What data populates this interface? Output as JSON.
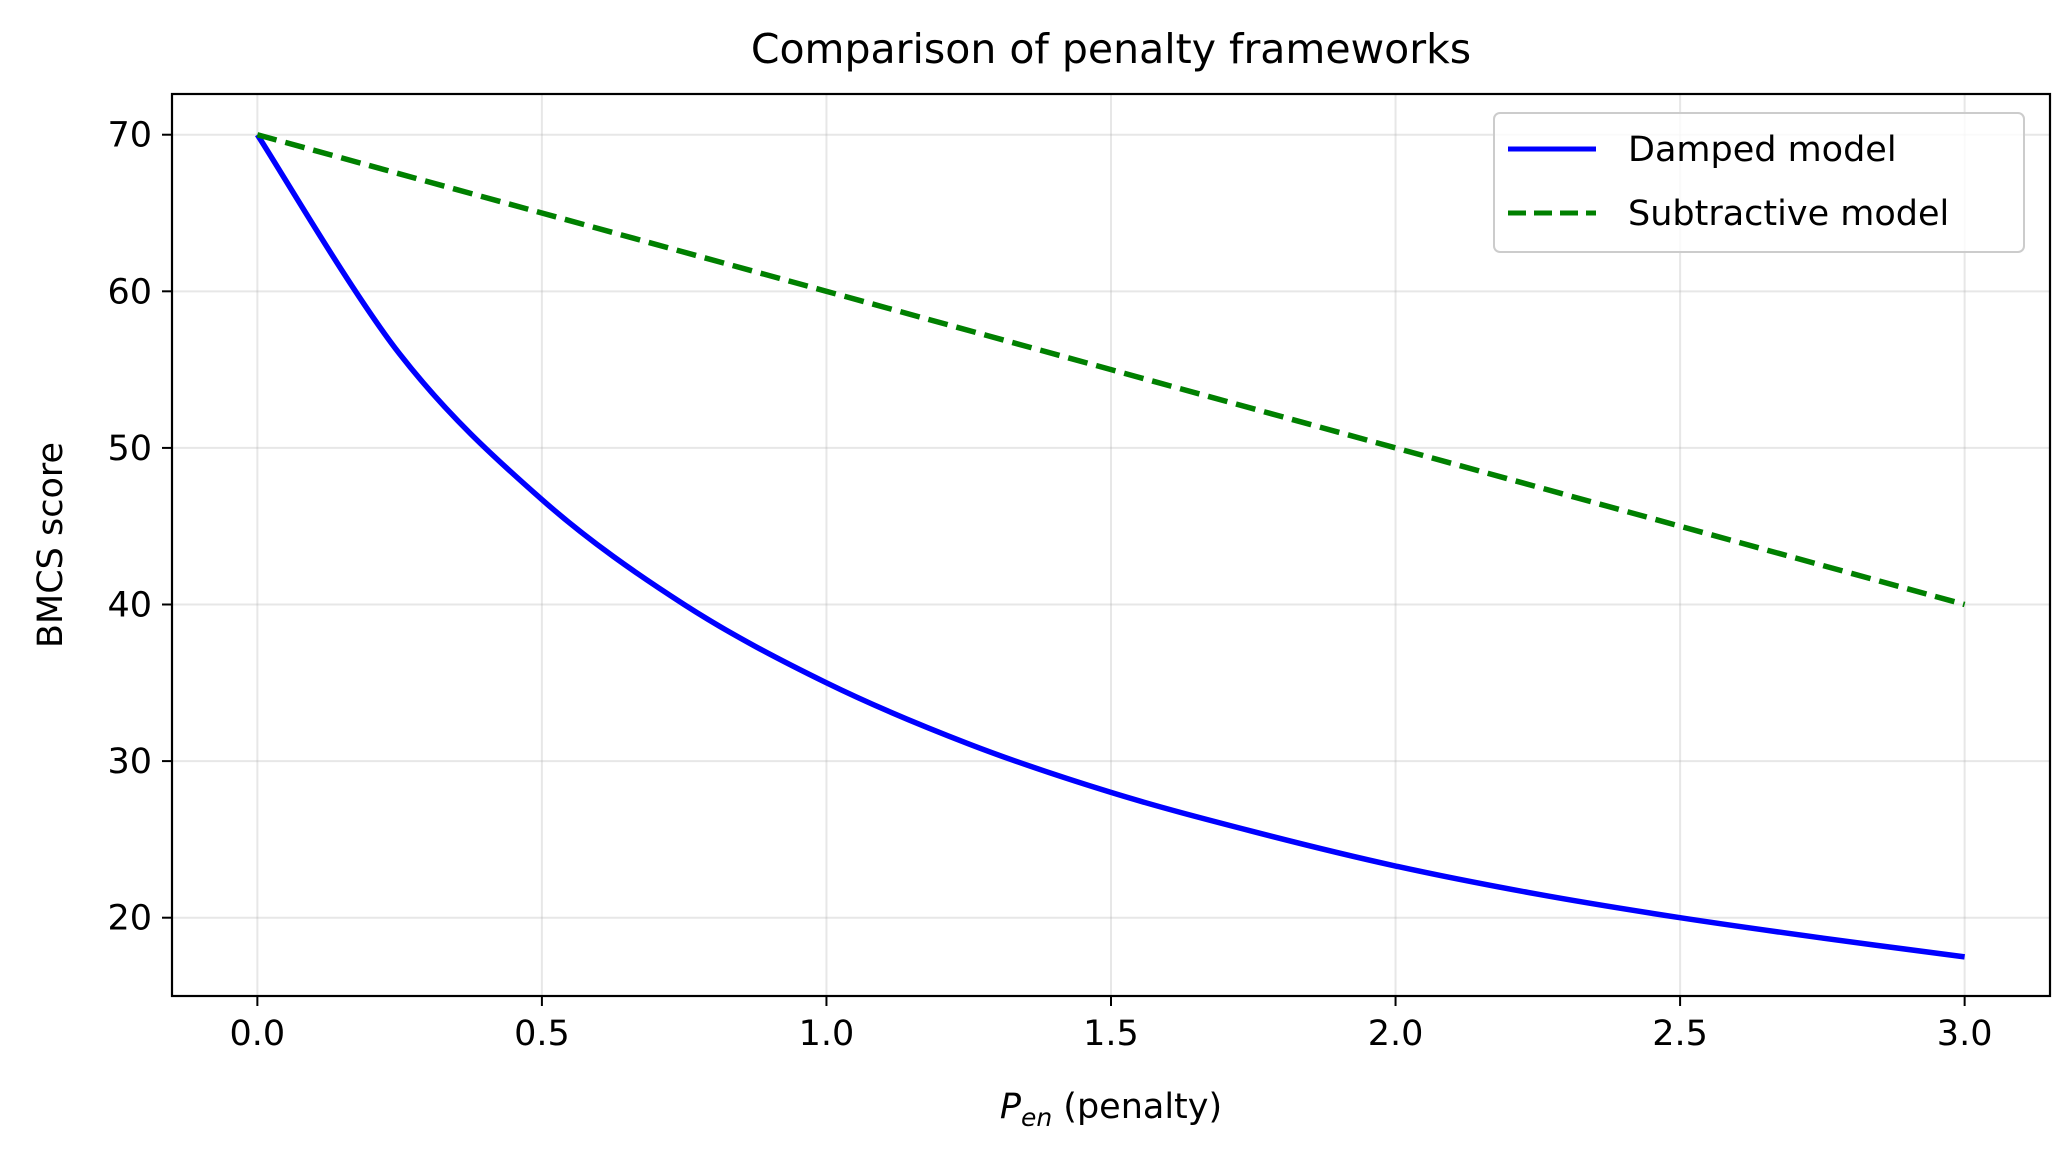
{
  "chart_data": {
    "type": "line",
    "title": "Comparison of penalty frameworks",
    "xlabel_symbol": "P",
    "xlabel_subscript": "en",
    "xlabel_rest": " (penalty)",
    "ylabel": "BMCS score",
    "xlim": [
      -0.15,
      3.15
    ],
    "ylim": [
      15.0,
      72.6
    ],
    "x_ticks": [
      0.0,
      0.5,
      1.0,
      1.5,
      2.0,
      2.5,
      3.0
    ],
    "x_tick_labels": [
      "0.0",
      "0.5",
      "1.0",
      "1.5",
      "2.0",
      "2.5",
      "3.0"
    ],
    "y_ticks": [
      20,
      30,
      40,
      50,
      60,
      70
    ],
    "y_tick_labels": [
      "20",
      "30",
      "40",
      "50",
      "60",
      "70"
    ],
    "grid": true,
    "legend_position": "top-right",
    "series": [
      {
        "name": "Damped model",
        "color": "#0000ff",
        "style": "solid",
        "x": [
          0.0,
          0.25,
          0.5,
          0.75,
          1.0,
          1.25,
          1.5,
          1.75,
          2.0,
          2.25,
          2.5,
          2.75,
          3.0
        ],
        "y": [
          70.0,
          56.0,
          46.7,
          40.0,
          35.0,
          31.1,
          28.0,
          25.5,
          23.3,
          21.5,
          20.0,
          18.7,
          17.5
        ]
      },
      {
        "name": "Subtractive model",
        "color": "#008000",
        "style": "dashed",
        "x": [
          0.0,
          3.0
        ],
        "y": [
          70.0,
          40.0
        ]
      }
    ]
  }
}
